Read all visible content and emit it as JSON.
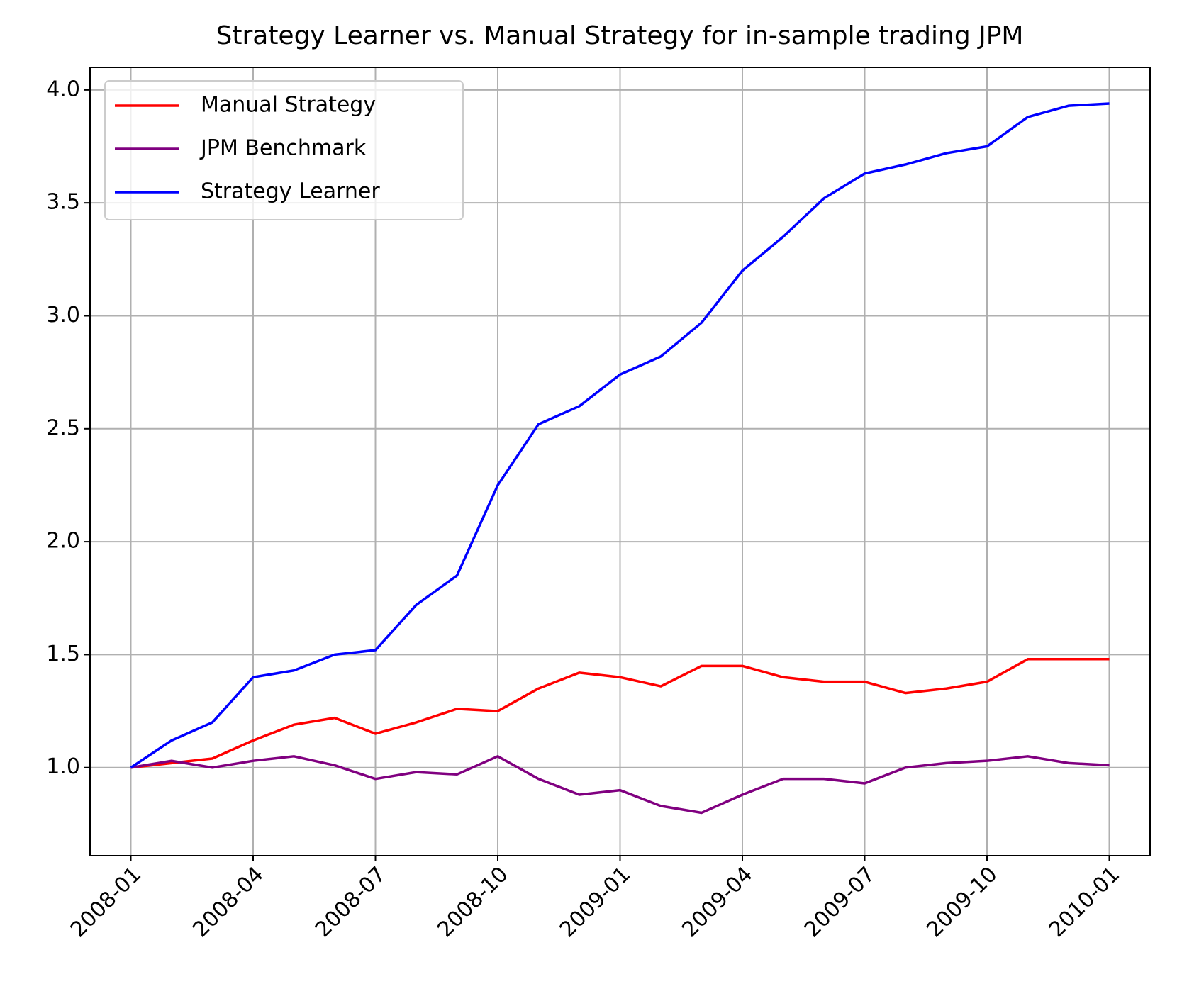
{
  "chart_data": {
    "type": "line",
    "title": "Strategy Learner vs. Manual Strategy for in-sample trading JPM",
    "x": [
      "2008-01",
      "2008-02",
      "2008-03",
      "2008-04",
      "2008-05",
      "2008-06",
      "2008-07",
      "2008-08",
      "2008-09",
      "2008-10",
      "2008-11",
      "2008-12",
      "2009-01",
      "2009-02",
      "2009-03",
      "2009-04",
      "2009-05",
      "2009-06",
      "2009-07",
      "2009-08",
      "2009-09",
      "2009-10",
      "2009-11",
      "2009-12",
      "2010-01"
    ],
    "series": [
      {
        "name": "Manual Strategy",
        "color": "#ff0000",
        "values": [
          1.0,
          1.02,
          1.04,
          1.12,
          1.19,
          1.22,
          1.15,
          1.2,
          1.26,
          1.25,
          1.35,
          1.42,
          1.4,
          1.36,
          1.45,
          1.45,
          1.4,
          1.38,
          1.38,
          1.33,
          1.35,
          1.38,
          1.48,
          1.48,
          1.48
        ]
      },
      {
        "name": "JPM Benchmark",
        "color": "#800080",
        "values": [
          1.0,
          1.03,
          1.0,
          1.03,
          1.05,
          1.01,
          0.95,
          0.98,
          0.97,
          1.05,
          0.95,
          0.88,
          0.9,
          0.83,
          0.8,
          0.88,
          0.95,
          0.95,
          0.93,
          1.0,
          1.02,
          1.03,
          1.05,
          1.02,
          1.01
        ]
      },
      {
        "name": "Strategy Learner",
        "color": "#0000ff",
        "values": [
          1.0,
          1.12,
          1.2,
          1.4,
          1.43,
          1.5,
          1.52,
          1.72,
          1.85,
          2.25,
          2.52,
          2.6,
          2.74,
          2.82,
          2.97,
          3.2,
          3.35,
          3.52,
          3.63,
          3.67,
          3.72,
          3.75,
          3.88,
          3.93,
          3.94
        ]
      }
    ],
    "xlim": [
      "2007-12",
      "2010-02"
    ],
    "xticks": [
      "2008-01",
      "2008-04",
      "2008-07",
      "2008-10",
      "2009-01",
      "2009-04",
      "2009-07",
      "2009-10",
      "2010-01"
    ],
    "ylim": [
      0.61,
      4.1
    ],
    "yticks": [
      {
        "value": 1,
        "label": "1.0"
      },
      {
        "value": 1.5,
        "label": "1.5"
      },
      {
        "value": 2,
        "label": "2.0"
      },
      {
        "value": 2.5,
        "label": "2.5"
      },
      {
        "value": 3,
        "label": "3.0"
      },
      {
        "value": 3.5,
        "label": "3.5"
      },
      {
        "value": 4,
        "label": "4.0"
      }
    ],
    "grid": true,
    "legend": "upper-left"
  }
}
